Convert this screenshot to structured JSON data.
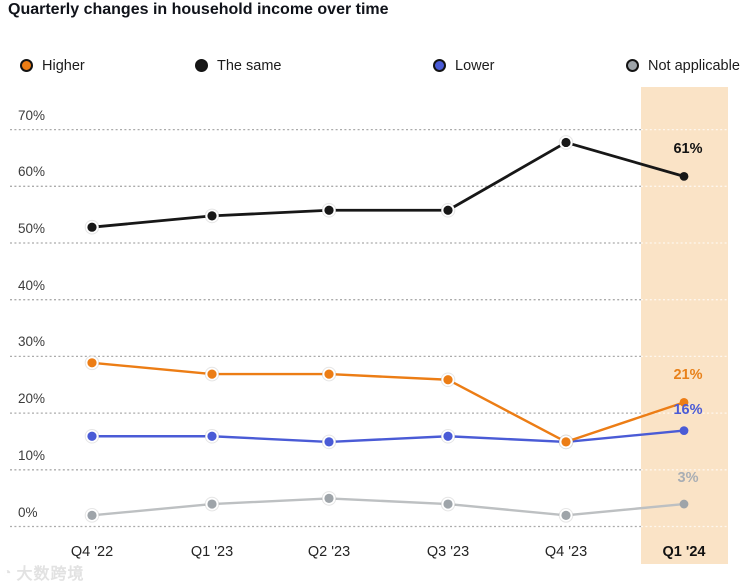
{
  "watermark": {
    "icon": "logo-badge-icon",
    "text": "大数跨境"
  },
  "chart_data": {
    "type": "line",
    "title": "Quarterly changes in household income over time",
    "categories": [
      "Q4 '22",
      "Q1 '23",
      "Q2 '23",
      "Q3 '23",
      "Q4 '23",
      "Q1 '24"
    ],
    "highlighted_category": "Q1 '24",
    "xlabel": "",
    "ylabel": "",
    "ylim": [
      0,
      70
    ],
    "ytick_values": [
      0,
      10,
      20,
      30,
      40,
      50,
      60,
      70
    ],
    "yticks": [
      "0%",
      "10%",
      "20%",
      "30%",
      "40%",
      "50%",
      "60%",
      "70%"
    ],
    "grid": "horizontal-dashed",
    "legend_position": "top",
    "highlight_band_color": "#FAE3C6",
    "gridline_color": "#ABABAB",
    "series": [
      {
        "key": "higher",
        "name": "Higher",
        "color": "#EC7D15",
        "values": [
          28,
          26,
          26,
          25,
          14,
          21
        ],
        "end_label": "21%",
        "end_label_color": "#E8811A"
      },
      {
        "key": "same",
        "name": "The same",
        "color": "#171717",
        "values": [
          52,
          54,
          55,
          55,
          67,
          61
        ],
        "end_label": "61%",
        "end_label_color": "#131313"
      },
      {
        "key": "lower",
        "name": "Lower",
        "color": "#4A5BD6",
        "values": [
          15,
          15,
          14,
          15,
          14,
          16
        ],
        "end_label": "16%",
        "end_label_color": "#4A5BD6"
      },
      {
        "key": "na",
        "name": "Not applicable",
        "color": "#BDC0C2",
        "marker_color": "#9EA4A9",
        "values": [
          1,
          3,
          4,
          3,
          1,
          3
        ],
        "end_label": "3%",
        "end_label_color": "#A9AEB4"
      }
    ]
  }
}
